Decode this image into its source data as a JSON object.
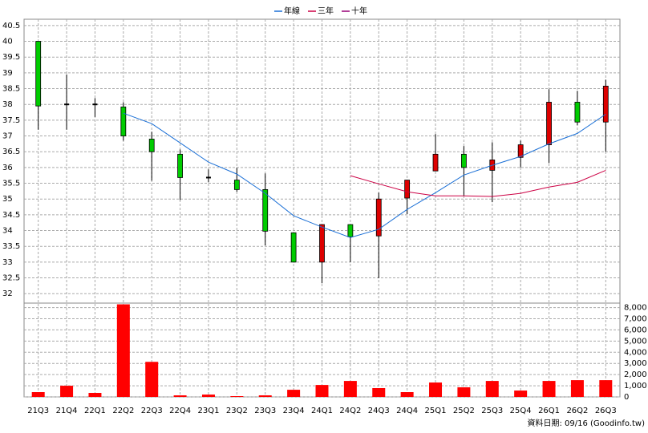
{
  "chart_data": [
    {
      "type": "candlestick",
      "categories": [
        "21Q3",
        "21Q4",
        "22Q1",
        "22Q2",
        "22Q3",
        "22Q4",
        "23Q1",
        "23Q2",
        "23Q3",
        "23Q4",
        "24Q1",
        "24Q2",
        "24Q3",
        "24Q4",
        "25Q1",
        "25Q2",
        "25Q3",
        "25Q4",
        "26Q1",
        "26Q2",
        "26Q3"
      ],
      "open": [
        40,
        38,
        38,
        37.92,
        36.9,
        36.42,
        35.68,
        35.6,
        35.3,
        33.93,
        33.0,
        34.19,
        33.83,
        35.03,
        35.89,
        36.42,
        35.91,
        36.32,
        36.72,
        38.07,
        37.44
      ],
      "high": [
        40,
        38.95,
        38.2,
        38.07,
        37.13,
        36.57,
        35.94,
        35.99,
        35.81,
        33.93,
        34.19,
        34.19,
        35.2,
        35.6,
        37.06,
        36.68,
        36.8,
        36.85,
        38.48,
        38.43,
        38.78
      ],
      "low": [
        37.2,
        37.2,
        37.6,
        36.85,
        35.58,
        34.97,
        35.53,
        35.23,
        33.53,
        33.0,
        32.33,
        33.0,
        32.49,
        34.52,
        35.89,
        35.1,
        34.9,
        36.0,
        36.14,
        37.34,
        36.5
      ],
      "close": [
        37.95,
        38,
        38,
        37.0,
        36.5,
        35.68,
        35.68,
        35.3,
        33.98,
        33.0,
        34.19,
        33.8,
        35.0,
        35.6,
        36.42,
        36.0,
        36.24,
        36.72,
        38.07,
        37.44,
        38.58
      ],
      "up_color": "#dd0000",
      "down_color": "#00cc00",
      "series": [
        {
          "name": "年線",
          "color": "#1a6fd6",
          "values": [
            null,
            null,
            null,
            37.72,
            37.39,
            36.78,
            36.17,
            35.79,
            35.18,
            34.47,
            34.11,
            33.78,
            34.04,
            34.67,
            35.2,
            35.76,
            36.07,
            36.35,
            36.75,
            37.08,
            37.69
          ]
        },
        {
          "name": "三年",
          "color": "#cc0044",
          "values": [
            null,
            null,
            null,
            null,
            null,
            null,
            null,
            null,
            null,
            null,
            null,
            35.74,
            35.48,
            35.23,
            35.1,
            35.1,
            35.08,
            35.18,
            35.38,
            35.53,
            35.91
          ]
        },
        {
          "name": "十年",
          "color": "#990077",
          "values": [
            null,
            null,
            null,
            null,
            null,
            null,
            null,
            null,
            null,
            null,
            null,
            null,
            null,
            null,
            null,
            null,
            null,
            null,
            null,
            null,
            null
          ]
        }
      ],
      "ylim": [
        31.7,
        40.7
      ],
      "yticks": [
        32,
        32.5,
        33,
        33.5,
        34,
        34.5,
        35,
        35.5,
        36,
        36.5,
        37,
        37.5,
        38,
        38.5,
        39,
        39.5,
        40,
        40.5
      ],
      "grid": true
    },
    {
      "type": "bar",
      "values": [
        430,
        1000,
        360,
        8290,
        3140,
        140,
        210,
        70,
        140,
        640,
        1070,
        1430,
        790,
        430,
        1290,
        860,
        1430,
        570,
        1430,
        1500,
        1500
      ],
      "color": "#ff0000",
      "ylim": [
        0,
        8400
      ],
      "yticks": [
        0,
        {
          "value": 1000,
          "label": "1,000"
        },
        {
          "value": 2000,
          "label": "2,000"
        },
        {
          "value": 3000,
          "label": "3,000"
        },
        {
          "value": 4000,
          "label": "4,000"
        },
        {
          "value": 5000,
          "label": "5,000"
        },
        {
          "value": 6000,
          "label": "6,000"
        },
        {
          "value": 7000,
          "label": "7,000"
        },
        {
          "value": 8000,
          "label": "8,000"
        }
      ],
      "grid": true,
      "footnote": "資料日期: 09/16 (Goodinfo.tw)"
    }
  ]
}
